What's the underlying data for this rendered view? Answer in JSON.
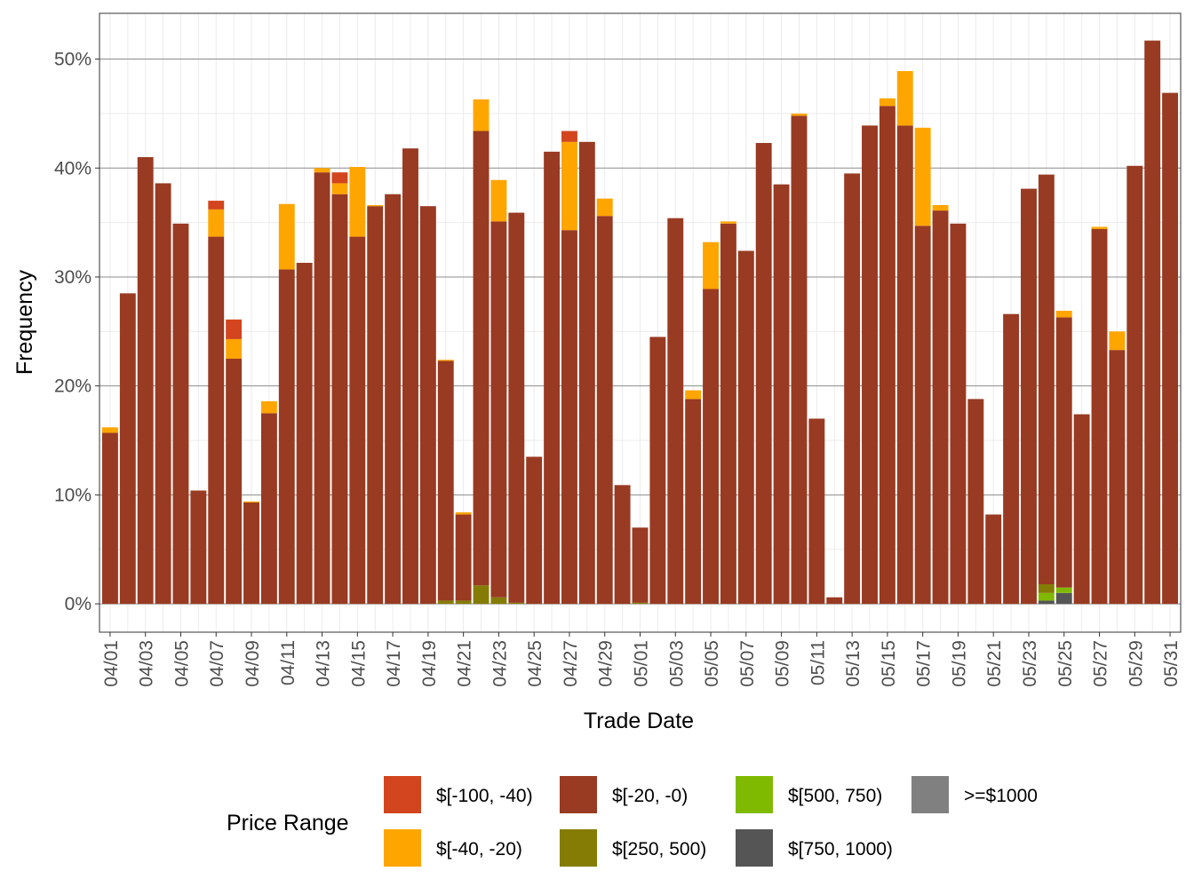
{
  "chart_data": {
    "type": "stacked_bar",
    "x_label": "Trade Date",
    "y_label": "Frequency",
    "legend_title": "Price Range",
    "categories": [
      "04/01",
      null,
      "04/03",
      null,
      "04/05",
      null,
      "04/07",
      null,
      "04/09",
      null,
      "04/11",
      null,
      "04/13",
      null,
      "04/15",
      null,
      "04/17",
      null,
      "04/19",
      null,
      "04/21",
      null,
      "04/23",
      null,
      "04/25",
      null,
      "04/27",
      null,
      "04/29",
      null,
      "05/01",
      null,
      "05/03",
      null,
      "05/05",
      null,
      "05/07",
      null,
      "05/09",
      null,
      "05/11",
      null,
      "05/13",
      null,
      "05/15",
      null,
      "05/17",
      null,
      "05/19",
      null,
      "05/21",
      null,
      "05/23",
      null,
      "05/25",
      null,
      "05/27",
      null,
      "05/29",
      null,
      "05/31"
    ],
    "series": [
      {
        "name": "$[-100, -40)",
        "color": "#d2451e",
        "values": [
          null,
          null,
          null,
          null,
          null,
          null,
          0.8,
          1.8,
          null,
          null,
          null,
          null,
          null,
          1.0,
          null,
          null,
          null,
          null,
          null,
          null,
          null,
          null,
          null,
          null,
          null,
          null,
          1.0,
          null,
          null,
          null,
          null,
          null,
          null,
          null,
          null,
          null,
          null,
          null,
          null,
          null,
          null,
          null,
          null,
          null,
          null,
          null,
          null,
          null,
          null,
          null,
          null,
          null,
          null,
          null,
          null,
          null,
          null,
          null,
          null,
          null,
          null
        ]
      },
      {
        "name": "$[-40, -20)",
        "color": "#ffa500",
        "values": [
          0.5,
          null,
          null,
          null,
          null,
          null,
          2.5,
          1.8,
          0.1,
          1.1,
          6.0,
          null,
          0.4,
          1.0,
          6.4,
          0.1,
          null,
          null,
          null,
          0.1,
          0.2,
          2.9,
          3.8,
          null,
          null,
          null,
          8.1,
          null,
          1.6,
          null,
          null,
          null,
          null,
          0.8,
          4.3,
          0.2,
          null,
          null,
          null,
          0.2,
          null,
          null,
          null,
          null,
          0.7,
          5.0,
          9.0,
          0.5,
          null,
          null,
          null,
          null,
          null,
          null,
          0.6,
          null,
          0.2,
          1.7,
          null,
          null,
          null
        ]
      },
      {
        "name": "$[-20, -0)",
        "color": "#993a22",
        "values": [
          15.7,
          28.5,
          41.0,
          38.6,
          34.9,
          10.4,
          33.7,
          22.5,
          9.3,
          17.5,
          30.7,
          31.3,
          39.6,
          37.6,
          33.7,
          36.5,
          37.6,
          41.8,
          36.5,
          22.0,
          7.9,
          41.7,
          34.5,
          35.8,
          13.5,
          41.5,
          34.3,
          42.4,
          35.6,
          10.9,
          6.9,
          24.5,
          35.4,
          18.8,
          28.9,
          34.9,
          32.4,
          42.3,
          38.5,
          44.8,
          17.0,
          0.6,
          39.5,
          43.9,
          45.7,
          43.9,
          34.7,
          36.1,
          34.9,
          18.8,
          8.2,
          26.6,
          38.1,
          37.6,
          24.8,
          17.4,
          34.4,
          23.3,
          40.2,
          51.7,
          46.9
        ]
      },
      {
        "name": "$[250, 500)",
        "color": "#857c06",
        "values": [
          null,
          null,
          null,
          null,
          null,
          null,
          null,
          null,
          null,
          null,
          null,
          null,
          null,
          null,
          null,
          null,
          null,
          null,
          null,
          0.3,
          0.3,
          1.7,
          0.6,
          0.1,
          null,
          null,
          null,
          null,
          null,
          null,
          0.1,
          null,
          null,
          null,
          null,
          null,
          null,
          null,
          null,
          null,
          null,
          null,
          null,
          null,
          null,
          null,
          null,
          null,
          null,
          null,
          null,
          null,
          null,
          0.8,
          null,
          null,
          null,
          null,
          null,
          null,
          null
        ]
      },
      {
        "name": "$[500, 750)",
        "color": "#80ba00",
        "values": [
          null,
          null,
          null,
          null,
          null,
          null,
          null,
          null,
          null,
          null,
          null,
          null,
          null,
          null,
          null,
          null,
          null,
          null,
          null,
          null,
          null,
          null,
          null,
          null,
          null,
          null,
          null,
          null,
          null,
          null,
          null,
          null,
          null,
          null,
          null,
          null,
          null,
          null,
          null,
          null,
          null,
          null,
          null,
          null,
          null,
          null,
          null,
          null,
          null,
          null,
          null,
          null,
          null,
          0.7,
          0.5,
          null,
          null,
          null,
          null,
          null,
          null
        ]
      },
      {
        "name": "$[750, 1000)",
        "color": "#555555",
        "values": [
          null,
          null,
          null,
          null,
          null,
          null,
          null,
          null,
          null,
          null,
          null,
          null,
          null,
          null,
          null,
          null,
          null,
          null,
          null,
          null,
          null,
          null,
          null,
          null,
          null,
          null,
          null,
          null,
          null,
          null,
          null,
          null,
          null,
          null,
          null,
          null,
          null,
          null,
          null,
          null,
          null,
          null,
          null,
          null,
          null,
          null,
          null,
          null,
          null,
          null,
          null,
          null,
          null,
          0.3,
          1.0,
          null,
          null,
          null,
          null,
          null,
          null
        ]
      },
      {
        "name": ">=$1000",
        "color": "#808080",
        "values": [
          null,
          null,
          null,
          null,
          null,
          null,
          null,
          null,
          null,
          null,
          null,
          null,
          null,
          null,
          null,
          null,
          null,
          null,
          null,
          null,
          null,
          null,
          null,
          null,
          null,
          null,
          null,
          null,
          null,
          null,
          null,
          null,
          null,
          null,
          null,
          null,
          null,
          null,
          null,
          null,
          null,
          null,
          null,
          null,
          null,
          null,
          null,
          null,
          null,
          null,
          null,
          null,
          null,
          null,
          null,
          null,
          null,
          null,
          null,
          null,
          null
        ]
      }
    ],
    "ylim": [
      -2.6,
      54.2
    ],
    "yticks": [
      {
        "value": 0,
        "label": "0%"
      },
      {
        "value": 10,
        "label": "10%"
      },
      {
        "value": 20,
        "label": "20%"
      },
      {
        "value": 30,
        "label": "30%"
      },
      {
        "value": 40,
        "label": "40%"
      },
      {
        "value": 50,
        "label": "50%"
      }
    ],
    "grid": true,
    "legend_position": "bottom"
  }
}
